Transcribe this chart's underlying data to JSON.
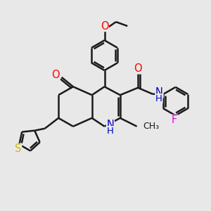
{
  "bg_color": "#e8e8e8",
  "bond_color": "#1a1a1a",
  "bond_width": 1.8,
  "double_sep": 0.1,
  "atom_colors": {
    "O": "#ff0000",
    "N": "#0000cc",
    "S": "#ccbb00",
    "F": "#ee00ee",
    "C": "#1a1a1a"
  },
  "font_size": 9.5,
  "fig_width": 3.0,
  "fig_height": 3.0,
  "dpi": 100,
  "xlim": [
    0,
    10
  ],
  "ylim": [
    0,
    10
  ]
}
